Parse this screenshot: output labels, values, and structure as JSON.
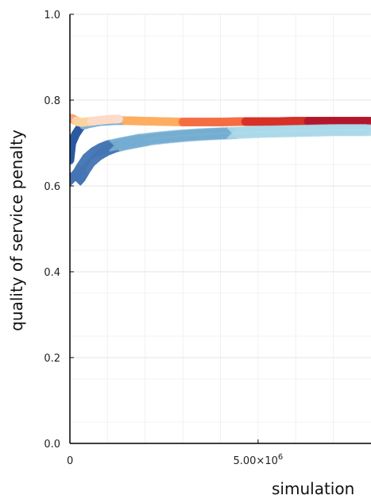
{
  "chart_data": {
    "type": "scatter",
    "title": "",
    "xlabel": "simulation",
    "ylabel": "quality of service penalty",
    "xlim": [
      0,
      8000000
    ],
    "ylim": [
      0.0,
      1.0
    ],
    "grid": true,
    "legend": "none",
    "y_ticks": [
      {
        "value": 0.0,
        "label": "0.0"
      },
      {
        "value": 0.2,
        "label": "0.2"
      },
      {
        "value": 0.4,
        "label": "0.4"
      },
      {
        "value": 0.6,
        "label": "0.6"
      },
      {
        "value": 0.8,
        "label": "0.8"
      },
      {
        "value": 1.0,
        "label": "1.0"
      }
    ],
    "x_ticks": [
      {
        "value": 0,
        "label": "0",
        "exp": ""
      },
      {
        "value": 5000000,
        "label": "5.00×10",
        "exp": "6"
      }
    ],
    "series": [
      {
        "marker": "circle",
        "colors": [
          "#2c5aa0",
          "#7fb4d9",
          "#fdae61",
          "#f46d43",
          "#d73027",
          "#b2182b"
        ],
        "x": [
          0,
          50000,
          150000,
          300000,
          500000,
          800000,
          1200000,
          1600000,
          2000000,
          2500000,
          3000000,
          3500000,
          4000000,
          4500000,
          5000000,
          5500000,
          6000000,
          6500000,
          7000000,
          7500000,
          8000000
        ],
        "y": [
          0.66,
          0.7,
          0.72,
          0.74,
          0.745,
          0.75,
          0.752,
          0.752,
          0.751,
          0.75,
          0.749,
          0.749,
          0.749,
          0.75,
          0.75,
          0.75,
          0.751,
          0.751,
          0.751,
          0.751,
          0.751
        ]
      },
      {
        "marker": "circle",
        "colors": [
          "#f4a582",
          "#fdd49e",
          "#fddbc7"
        ],
        "x": [
          0,
          50000,
          100000,
          200000,
          300000,
          500000,
          700000,
          1000000,
          1300000
        ],
        "y": [
          0.758,
          0.757,
          0.755,
          0.75,
          0.748,
          0.75,
          0.752,
          0.755,
          0.756
        ]
      },
      {
        "marker": "x",
        "colors": [
          "#4575b4",
          "#74add1",
          "#abd9e9"
        ],
        "x": [
          50000,
          150000,
          250000,
          350000,
          500000,
          700000,
          900000,
          1100000,
          1400000,
          1700000,
          2000000,
          2500000,
          3000000,
          3500000,
          4000000,
          4500000,
          5000000,
          5500000,
          6000000,
          6500000,
          7000000,
          7500000,
          8000000
        ],
        "y": [
          0.625,
          0.615,
          0.625,
          0.64,
          0.66,
          0.675,
          0.685,
          0.692,
          0.698,
          0.703,
          0.708,
          0.713,
          0.717,
          0.72,
          0.722,
          0.724,
          0.726,
          0.727,
          0.728,
          0.729,
          0.73,
          0.73,
          0.73
        ]
      }
    ]
  }
}
